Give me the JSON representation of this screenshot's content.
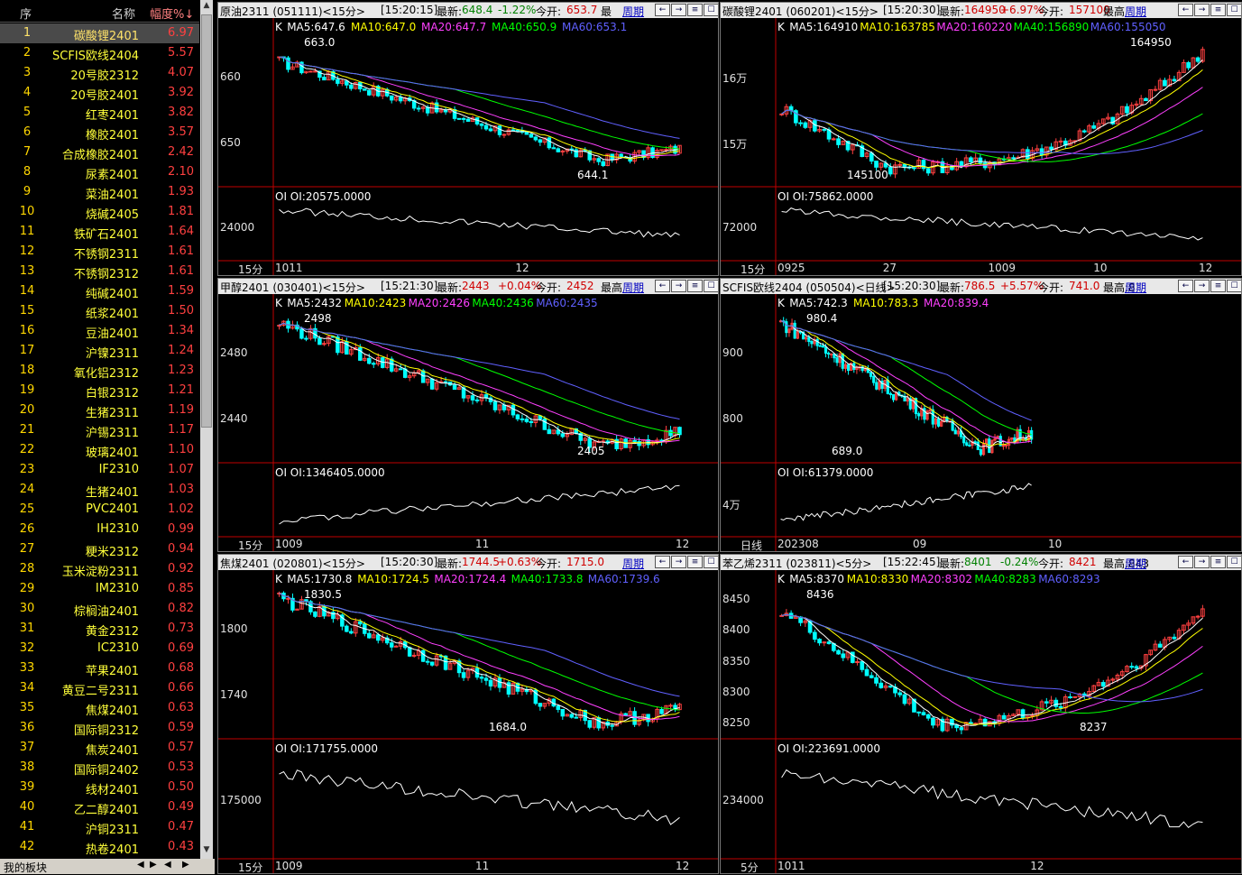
{
  "left_panel": {
    "headers": {
      "idx": "序",
      "name": "名称",
      "pct": "幅度%↓"
    },
    "rows": [
      {
        "i": "1",
        "n": "碳酸锂2401",
        "p": "6.97"
      },
      {
        "i": "2",
        "n": "SCFIS欧线2404",
        "p": "5.57"
      },
      {
        "i": "3",
        "n": "20号胶2312",
        "p": "4.07"
      },
      {
        "i": "4",
        "n": "20号胶2401",
        "p": "3.92"
      },
      {
        "i": "5",
        "n": "红枣2401",
        "p": "3.82"
      },
      {
        "i": "6",
        "n": "橡胶2401",
        "p": "3.57"
      },
      {
        "i": "7",
        "n": "合成橡胶2401",
        "p": "2.42"
      },
      {
        "i": "8",
        "n": "尿素2401",
        "p": "2.10"
      },
      {
        "i": "9",
        "n": "菜油2401",
        "p": "1.93"
      },
      {
        "i": "10",
        "n": "烧碱2405",
        "p": "1.81"
      },
      {
        "i": "11",
        "n": "铁矿石2401",
        "p": "1.64"
      },
      {
        "i": "12",
        "n": "不锈钢2311",
        "p": "1.61"
      },
      {
        "i": "13",
        "n": "不锈钢2312",
        "p": "1.61"
      },
      {
        "i": "14",
        "n": "纯碱2401",
        "p": "1.59"
      },
      {
        "i": "15",
        "n": "纸浆2401",
        "p": "1.50"
      },
      {
        "i": "16",
        "n": "豆油2401",
        "p": "1.34"
      },
      {
        "i": "17",
        "n": "沪镍2311",
        "p": "1.24"
      },
      {
        "i": "18",
        "n": "氧化铝2312",
        "p": "1.23"
      },
      {
        "i": "19",
        "n": "白银2312",
        "p": "1.21"
      },
      {
        "i": "20",
        "n": "生猪2311",
        "p": "1.19"
      },
      {
        "i": "21",
        "n": "沪锡2311",
        "p": "1.17"
      },
      {
        "i": "22",
        "n": "玻璃2401",
        "p": "1.10"
      },
      {
        "i": "23",
        "n": "IF2310",
        "p": "1.07"
      },
      {
        "i": "24",
        "n": "生猪2401",
        "p": "1.03"
      },
      {
        "i": "25",
        "n": "PVC2401",
        "p": "1.02"
      },
      {
        "i": "26",
        "n": "IH2310",
        "p": "0.99"
      },
      {
        "i": "27",
        "n": "粳米2312",
        "p": "0.94"
      },
      {
        "i": "28",
        "n": "玉米淀粉2311",
        "p": "0.92"
      },
      {
        "i": "29",
        "n": "IM2310",
        "p": "0.85"
      },
      {
        "i": "30",
        "n": "棕榈油2401",
        "p": "0.82"
      },
      {
        "i": "31",
        "n": "黄金2312",
        "p": "0.73"
      },
      {
        "i": "32",
        "n": "IC2310",
        "p": "0.69"
      },
      {
        "i": "33",
        "n": "苹果2401",
        "p": "0.68"
      },
      {
        "i": "34",
        "n": "黄豆二号2311",
        "p": "0.66"
      },
      {
        "i": "35",
        "n": "焦煤2401",
        "p": "0.63"
      },
      {
        "i": "36",
        "n": "国际铜2312",
        "p": "0.59"
      },
      {
        "i": "37",
        "n": "焦炭2401",
        "p": "0.57"
      },
      {
        "i": "38",
        "n": "国际铜2402",
        "p": "0.53"
      },
      {
        "i": "39",
        "n": "线材2401",
        "p": "0.50"
      },
      {
        "i": "40",
        "n": "乙二醇2401",
        "p": "0.49"
      },
      {
        "i": "41",
        "n": "沪铜2311",
        "p": "0.47"
      },
      {
        "i": "42",
        "n": "热卷2401",
        "p": "0.43"
      }
    ],
    "bottom_tab": "我的板块"
  },
  "colors": {
    "up": "#ff4040",
    "down": "#00ffff",
    "ma5": "#ffffff",
    "ma10": "#ffff00",
    "ma20": "#ff40ff",
    "ma40": "#00ff00",
    "ma60": "#6060ff",
    "axis": "#c00000"
  },
  "panels": [
    {
      "title": "原油2311 (051111)<15分>",
      "time": "[15:20:15]",
      "latest_label": "最新:",
      "latest": "648.4",
      "chg": "-1.22%",
      "open_label": "今开:",
      "open": "653.7",
      "extra_label": "最",
      "cycle": "周期",
      "ma": {
        "k": "K",
        "ma5": "MA5:647.6",
        "ma10": "MA10:647.0",
        "ma20": "MA20:647.7",
        "ma40": "MA40:650.9",
        "ma60": "MA60:653.1"
      },
      "yticks": [
        "660",
        "650"
      ],
      "ymin": 640.5,
      "ymax": 667.5,
      "hi": "663.0",
      "lo": "644.1",
      "oi_label": "OI OI:20575.0000",
      "oi_tick": "24000",
      "period": "15分",
      "xticks": [
        "1011",
        "12"
      ],
      "trend": "down"
    },
    {
      "title": "碳酸锂2401 (060201)<15分>",
      "time": "[15:20:30]",
      "latest_label": "最新:",
      "latest": "164950",
      "chg": "+6.97%",
      "open_label": "今开:",
      "open": "157100",
      "extra_label": "最高",
      "cycle": "周期",
      "ma": {
        "k": "K",
        "ma5": "MA5:164910",
        "ma10": "MA10:163785",
        "ma20": "MA20:160220",
        "ma40": "MA40:156890",
        "ma60": "MA60:155050"
      },
      "yticks": [
        "16万",
        "15万"
      ],
      "ymin": 143000,
      "ymax": 167000,
      "hi": "164950",
      "lo": "145100",
      "oi_label": "OI OI:75862.0000",
      "oi_tick": "72000",
      "period": "15分",
      "xticks": [
        "0925",
        "27",
        "1009",
        "10",
        "12"
      ],
      "trend": "v"
    },
    {
      "title": "甲醇2401 (030401)<15分>",
      "time": "[15:21:30]",
      "latest_label": "最新:",
      "latest": "2443",
      "chg": "+0.04%",
      "open_label": "今开:",
      "open": "2452",
      "extra_label": "最高",
      "cycle": "周期",
      "ma": {
        "k": "K",
        "ma5": "MA5:2432",
        "ma10": "MA10:2423",
        "ma20": "MA20:2426",
        "ma40": "MA40:2436",
        "ma60": "MA60:2435"
      },
      "yticks": [
        "2480",
        "2440"
      ],
      "ymin": 2398,
      "ymax": 2505,
      "hi": "2498",
      "lo": "2405",
      "oi_label": "OI OI:1346405.0000",
      "oi_tick": "",
      "period": "15分",
      "xticks": [
        "1009",
        "11",
        "12"
      ],
      "trend": "down"
    },
    {
      "title": "SCFIS欧线2404 (050504)<日线>",
      "time": "[15:20:30]",
      "latest_label": "最新:",
      "latest": "786.5",
      "chg": "+5.57%",
      "open_label": "今开:",
      "open": "741.0",
      "extra_label": "最高:8",
      "cycle": "周期",
      "ma": {
        "k": "K",
        "ma5": "MA5:742.3",
        "ma10": "MA10:783.3",
        "ma20": "MA20:839.4",
        "ma40": "",
        "ma60": ""
      },
      "yticks": [
        "900",
        "800"
      ],
      "ymin": 670,
      "ymax": 1000,
      "hi": "980.4",
      "lo": "689.0",
      "oi_label": "OI OI:61379.0000",
      "oi_tick": "4万",
      "period": "日线",
      "xticks": [
        "202308",
        "09",
        "10"
      ],
      "trend": "down"
    },
    {
      "title": "焦煤2401 (020801)<15分>",
      "time": "[15:20:30]",
      "latest_label": "最新:",
      "latest": "1744.5",
      "chg": "+0.63%",
      "open_label": "今开:",
      "open": "1715.0",
      "extra_label": "",
      "cycle": "周期",
      "ma": {
        "k": "K",
        "ma5": "MA5:1730.8",
        "ma10": "MA10:1724.5",
        "ma20": "MA20:1724.4",
        "ma40": "MA40:1733.8",
        "ma60": "MA60:1739.6"
      },
      "yticks": [
        "1800",
        "1740"
      ],
      "ymin": 1675,
      "ymax": 1840,
      "hi": "1830.5",
      "lo": "1684.0",
      "oi_label": "OI OI:171755.0000",
      "oi_tick": "175000",
      "period": "15分",
      "xticks": [
        "1009",
        "11",
        "12"
      ],
      "trend": "down"
    },
    {
      "title": "苯乙烯2311 (023811)<5分>",
      "time": "[15:22:45]",
      "latest_label": "最新:",
      "latest": "8401",
      "chg": "-0.24%",
      "open_label": "今开:",
      "open": "8421",
      "extra_label": "最高:843",
      "cycle": "周期",
      "ma": {
        "k": "K",
        "ma5": "MA5:8370",
        "ma10": "MA10:8330",
        "ma20": "MA20:8302",
        "ma40": "MA40:8283",
        "ma60": "MA60:8293"
      },
      "yticks": [
        "8450",
        "8400",
        "8350",
        "8300",
        "8250"
      ],
      "ymin": 8225,
      "ymax": 8470,
      "hi": "8436",
      "lo": "8237",
      "oi_label": "OI OI:223691.0000",
      "oi_tick": "234000",
      "period": "5分",
      "xticks": [
        "1011",
        "12"
      ],
      "trend": "v"
    }
  ]
}
